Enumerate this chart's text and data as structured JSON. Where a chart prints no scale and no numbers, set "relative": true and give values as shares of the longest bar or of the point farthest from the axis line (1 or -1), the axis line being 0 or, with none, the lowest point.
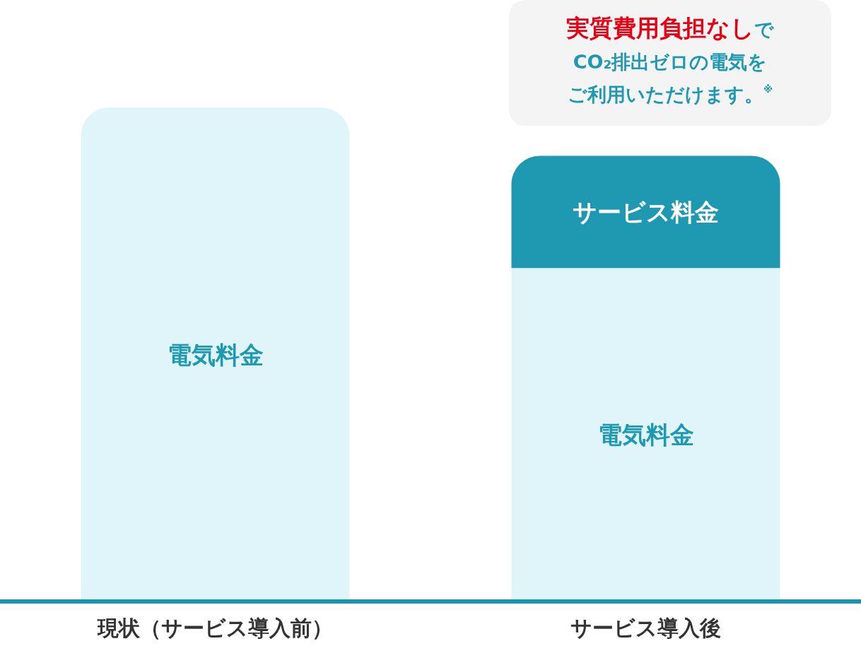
{
  "chart_data": {
    "type": "bar",
    "stacked": true,
    "relative": true,
    "categories": [
      "現状（サービス導入前）",
      "サービス導入後"
    ],
    "series": [
      {
        "name": "電気料金",
        "color": "#e0f5f9",
        "values": [
          1,
          0.675
        ]
      },
      {
        "name": "サービス料金",
        "color": "#1f98b2",
        "values": [
          null,
          0.227
        ]
      }
    ],
    "annotations": [
      "実質費用負担なし",
      "で",
      "CO₂排出ゼロの電気を",
      "ご利用いただけます。$^{※}$"
    ]
  }
}
